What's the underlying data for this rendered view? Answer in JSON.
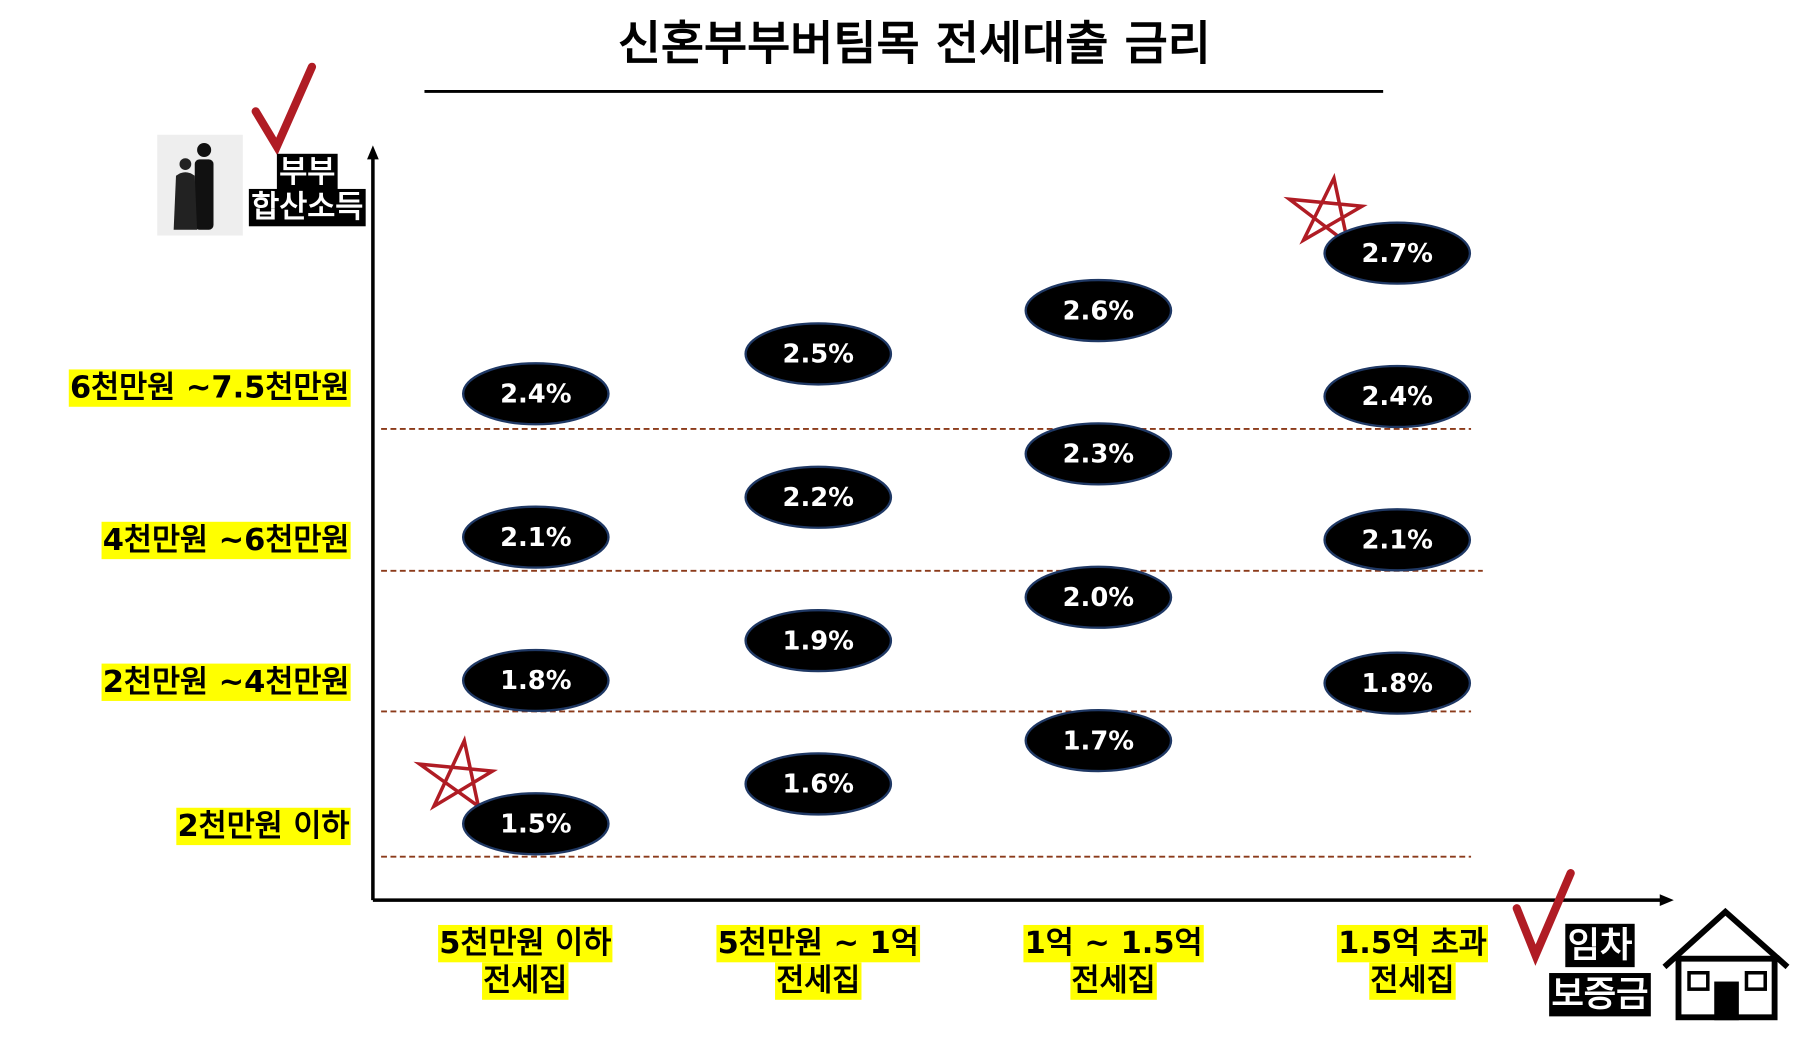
{
  "title": "신혼부부버팀목 전세대출 금리",
  "y_axis_label": [
    "부부",
    "합산소득"
  ],
  "x_axis_label": [
    "임차",
    "보증금"
  ],
  "income_brackets": [
    "6천만원 ~7.5천만원",
    "4천만원 ~6천만원",
    "2천만원 ~4천만원",
    "2천만원 이하"
  ],
  "deposit_brackets": [
    [
      "5천만원 이하",
      "전세집"
    ],
    [
      "5천만원 ~ 1억",
      "전세집"
    ],
    [
      "1억 ~ 1.5억",
      "전세집"
    ],
    [
      "1.5억 초과",
      "전세집"
    ]
  ],
  "rates": [
    [
      "2.4%",
      "2.1%",
      "1.8%",
      "1.5%"
    ],
    [
      "2.5%",
      "2.2%",
      "1.9%",
      "1.6%"
    ],
    [
      "2.6%",
      "2.3%",
      "2.0%",
      "1.7%"
    ],
    [
      "2.7%",
      "2.4%",
      "2.1%",
      "1.8%"
    ]
  ]
}
